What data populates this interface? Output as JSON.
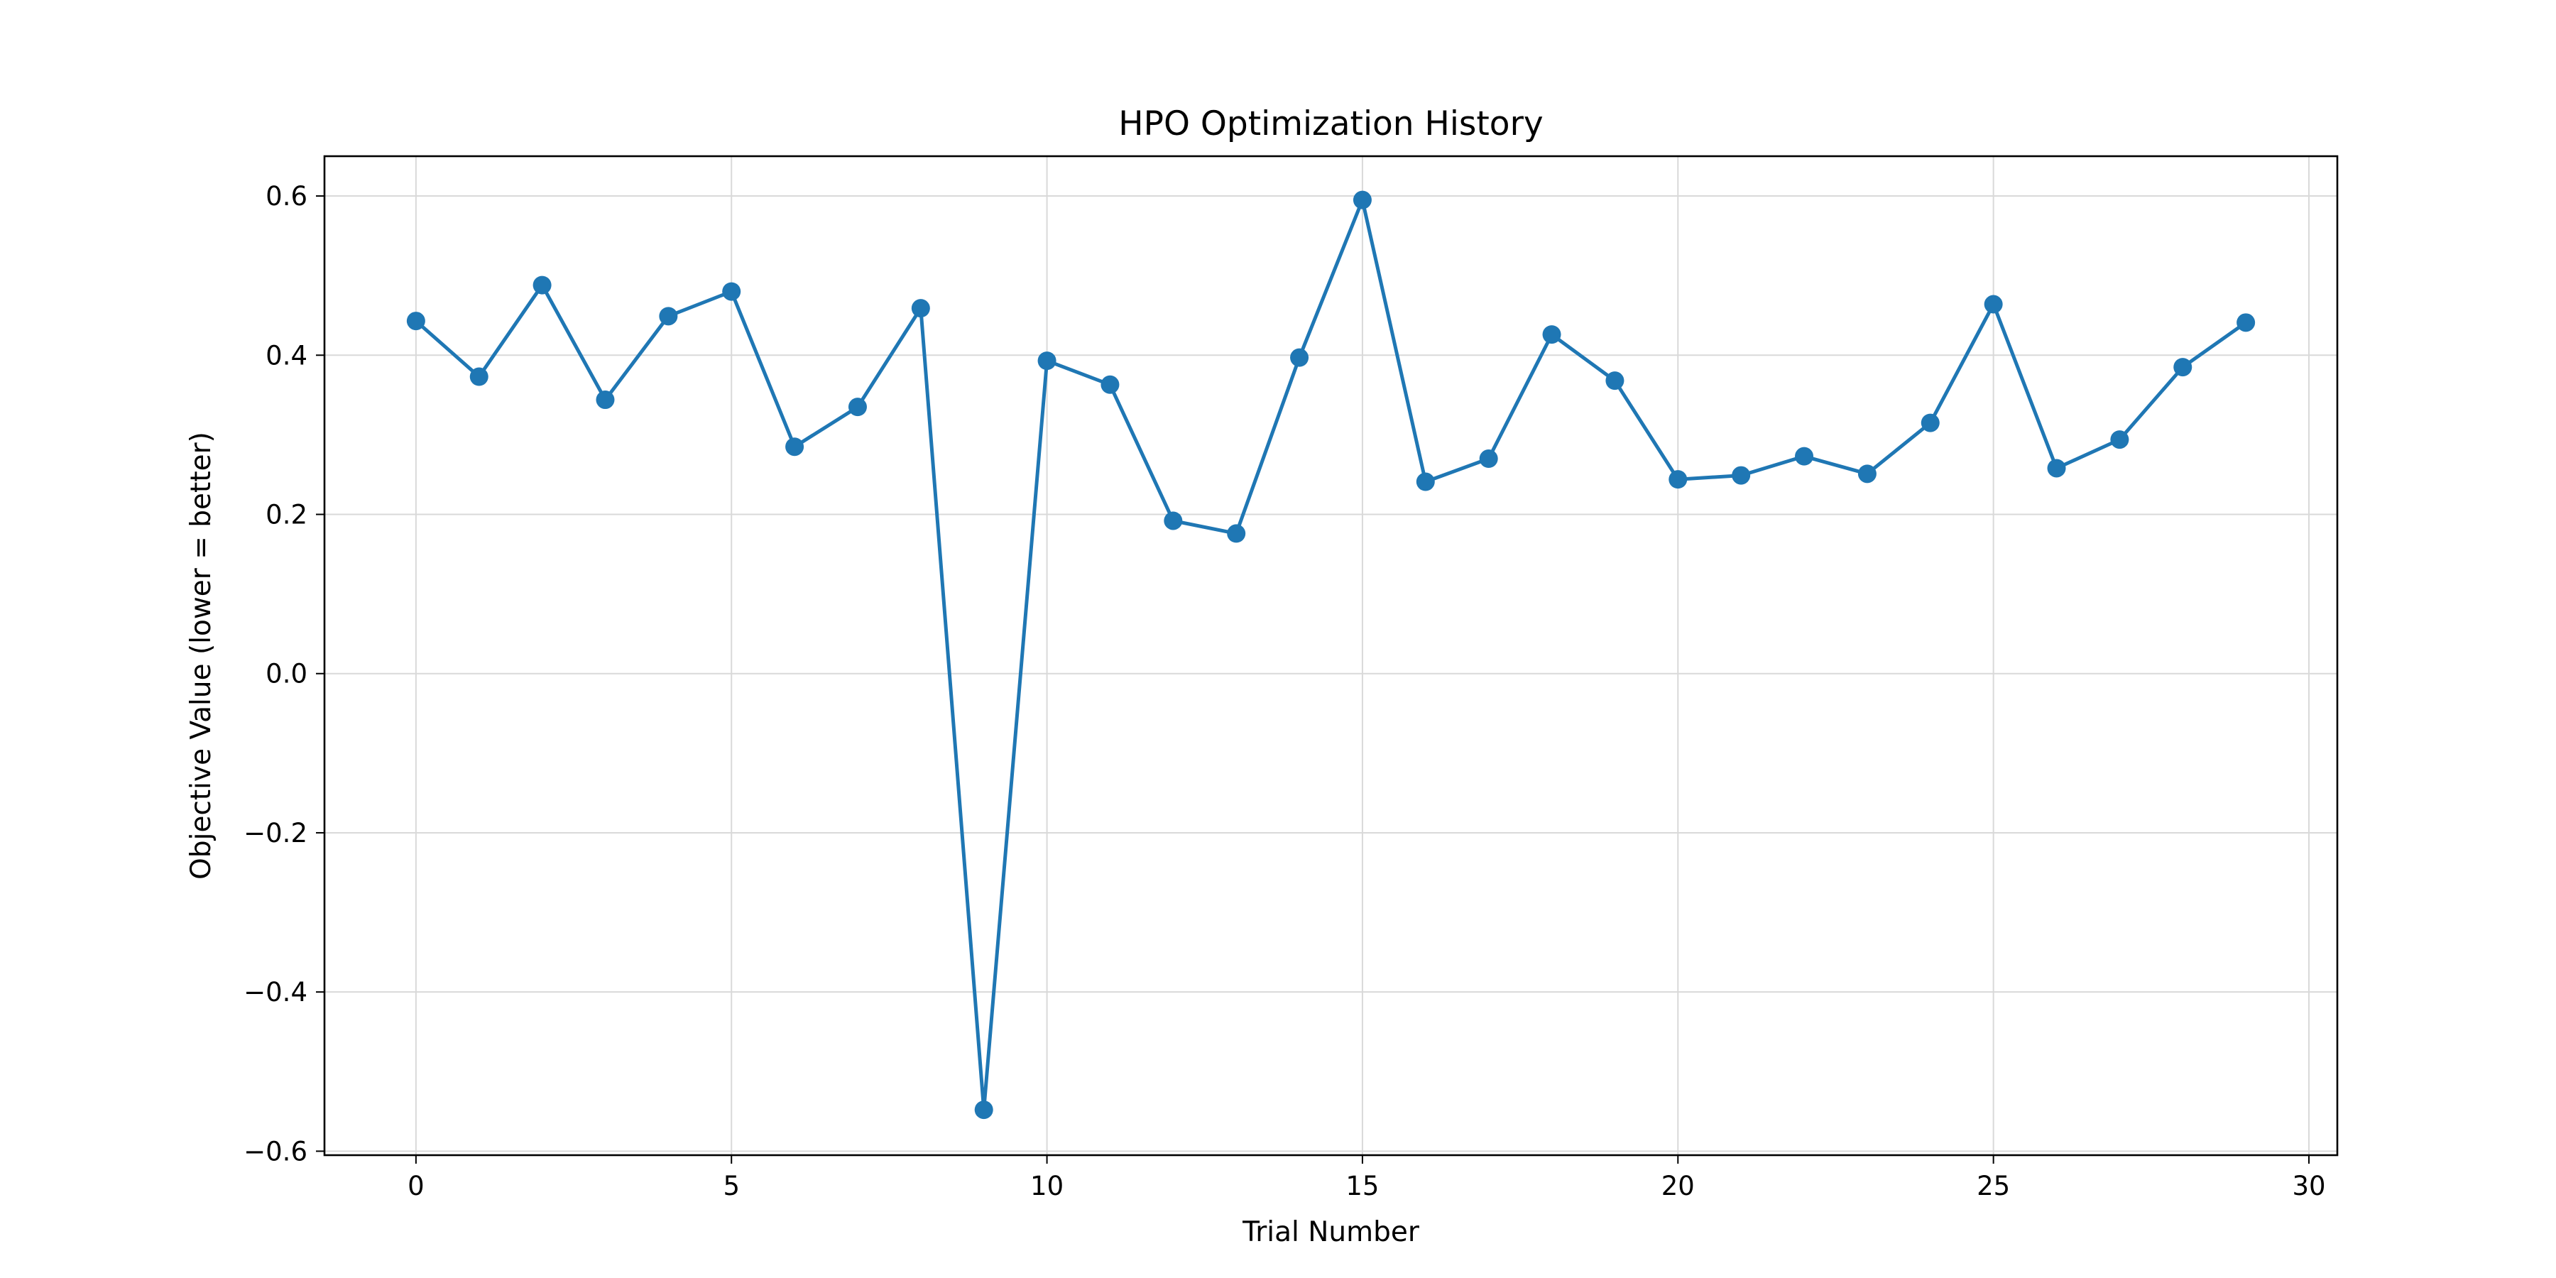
{
  "chart_data": {
    "type": "line",
    "title": "HPO Optimization History",
    "xlabel": "Trial Number",
    "ylabel": "Objective Value (lower = better)",
    "xlim": [
      -1.45,
      30.45
    ],
    "ylim": [
      -0.605,
      0.65
    ],
    "x_ticks": [
      0,
      5,
      10,
      15,
      20,
      25,
      30
    ],
    "x_tick_labels": [
      "0",
      "5",
      "10",
      "15",
      "20",
      "25",
      "30"
    ],
    "y_ticks": [
      -0.6,
      -0.4,
      -0.2,
      0.0,
      0.2,
      0.4,
      0.6
    ],
    "y_tick_labels": [
      "−0.6",
      "−0.4",
      "−0.2",
      "0.0",
      "0.2",
      "0.4",
      "0.6"
    ],
    "grid": true,
    "series": [
      {
        "color": "#1f77b4",
        "marker": "circle",
        "x": [
          0,
          1,
          2,
          3,
          4,
          5,
          6,
          7,
          8,
          9,
          10,
          11,
          12,
          13,
          14,
          15,
          16,
          17,
          18,
          19,
          20,
          21,
          22,
          23,
          24,
          25,
          26,
          27,
          28,
          29
        ],
        "values": [
          0.443,
          0.373,
          0.488,
          0.344,
          0.449,
          0.48,
          0.285,
          0.335,
          0.459,
          -0.548,
          0.393,
          0.363,
          0.192,
          0.176,
          0.397,
          0.595,
          0.241,
          0.27,
          0.426,
          0.368,
          0.244,
          0.249,
          0.273,
          0.251,
          0.315,
          0.464,
          0.258,
          0.294,
          0.385,
          0.441
        ]
      }
    ]
  }
}
